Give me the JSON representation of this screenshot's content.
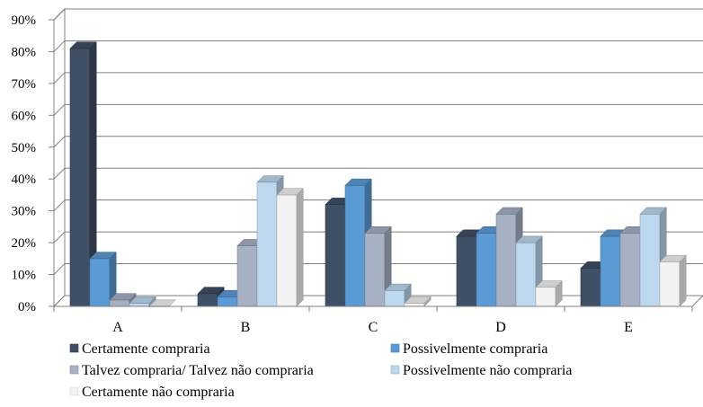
{
  "chart_data": {
    "type": "bar",
    "style": "3d-clustered-column",
    "title": "",
    "xlabel": "",
    "ylabel": "",
    "categories": [
      "A",
      "B",
      "C",
      "D",
      "E"
    ],
    "ylim": [
      0,
      90
    ],
    "y_ticks": [
      "0%",
      "10%",
      "20%",
      "30%",
      "40%",
      "50%",
      "60%",
      "70%",
      "80%",
      "90%"
    ],
    "grid": true,
    "legend_position": "bottom",
    "series": [
      {
        "name": "Certamente compraria",
        "color": "#3f4f66",
        "values": [
          81,
          4,
          32,
          22,
          12
        ]
      },
      {
        "name": "Possivelmente compraria",
        "color": "#5b9bd5",
        "values": [
          15,
          3,
          38,
          23,
          22
        ]
      },
      {
        "name": "Talvez compraria/ Talvez não compraria",
        "color": "#a6b1c4",
        "values": [
          2,
          19,
          23,
          29,
          23
        ]
      },
      {
        "name": "Possivelmente não compraria",
        "color": "#bdd7ee",
        "values": [
          1,
          39,
          5,
          20,
          29
        ]
      },
      {
        "name": "Certamente não compraria",
        "color": "#f2f2f2",
        "values": [
          0,
          35,
          1,
          6,
          14
        ]
      }
    ]
  }
}
